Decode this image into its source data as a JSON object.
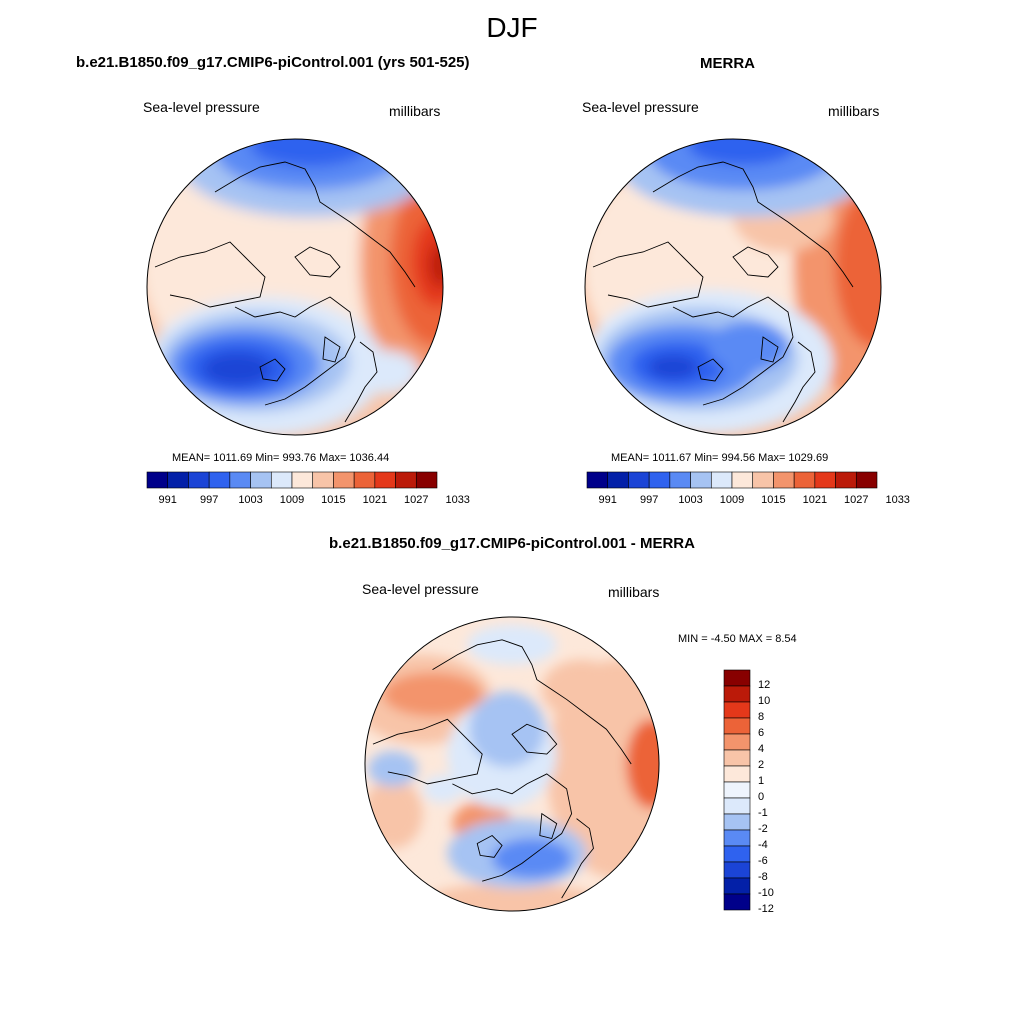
{
  "season": "DJF",
  "colors": {
    "levels13": [
      "#00008a",
      "#0320a8",
      "#1b44d6",
      "#2f62ef",
      "#5a8af4",
      "#a6c3f3",
      "#dce9fb",
      "#fde8da",
      "#f8c4a8",
      "#f3946c",
      "#ec6338",
      "#e4381a",
      "#bb1a09",
      "#880000"
    ],
    "land_outline": "#000000",
    "ocean_outline": "#444444"
  },
  "panels": {
    "model": {
      "title": "b.e21.B1850.f09_g17.CMIP6-piControl.001 (yrs 501-525)",
      "field": "Sea-level pressure",
      "units": "millibars",
      "stats": "MEAN= 1011.69  Min= 993.76  Max= 1036.44",
      "colorbar_ticks": [
        "991",
        "997",
        "1003",
        "1009",
        "1015",
        "1021",
        "1027",
        "1033"
      ]
    },
    "obs": {
      "title": "MERRA",
      "field": "Sea-level pressure",
      "units": "millibars",
      "stats": "MEAN= 1011.67  Min= 994.56  Max= 1029.69",
      "colorbar_ticks": [
        "991",
        "997",
        "1003",
        "1009",
        "1015",
        "1021",
        "1027",
        "1033"
      ]
    },
    "diff": {
      "title": "b.e21.B1850.f09_g17.CMIP6-piControl.001 - MERRA",
      "field": "Sea-level pressure",
      "units": "millibars",
      "minmax": "MIN =  -4.50 MAX =   8.54",
      "colorbar_ticks": [
        "12",
        "10",
        "8",
        "6",
        "4",
        "2",
        "1",
        "0",
        "-1",
        "-2",
        "-4",
        "-6",
        "-8",
        "-10",
        "-12"
      ]
    }
  }
}
